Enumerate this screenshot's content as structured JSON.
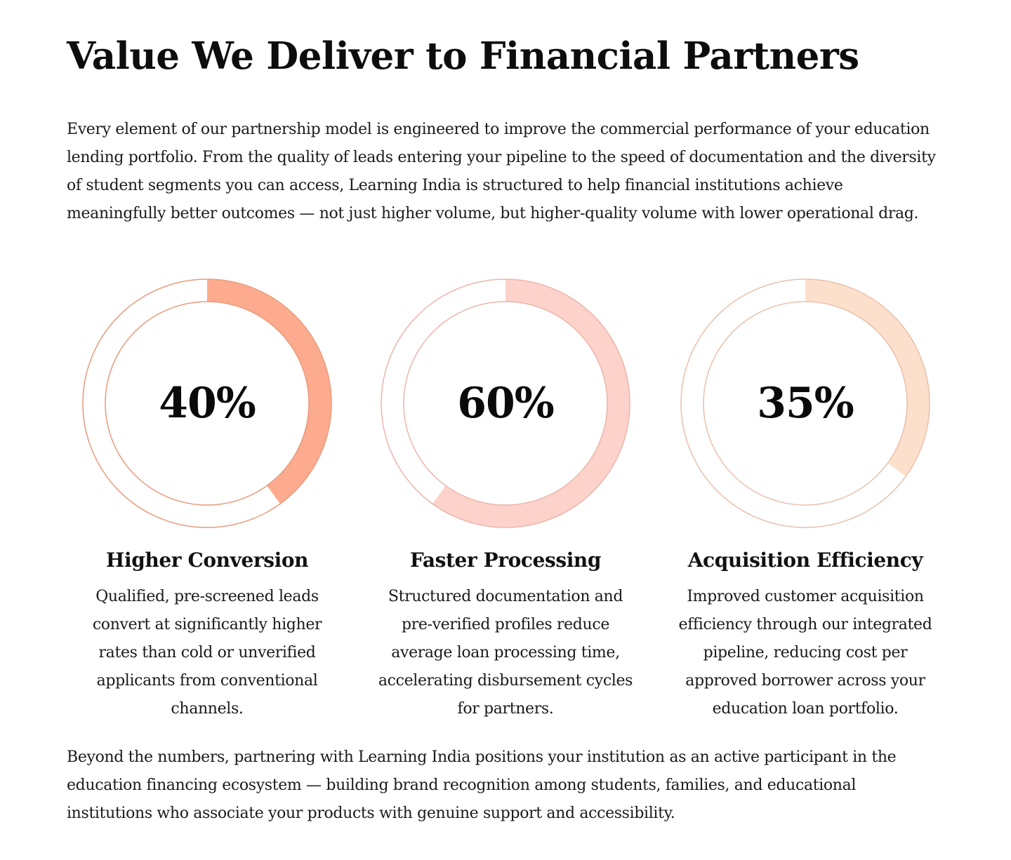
{
  "heading": "Value We Deliver to Financial Partners",
  "intro": "Every element of our partnership model is engineered to improve the commercial performance of your education lending portfolio. From the quality of leads entering your pipeline to the speed of documentation and the diversity of student segments you can access, Learning India is structured to help financial institutions achieve meaningfully better outcomes — not just higher volume, but higher-quality volume with lower operational drag.",
  "metrics": [
    {
      "value": "40%",
      "fraction": 0.4,
      "color": "#fcab8f",
      "border": "#e99a7e",
      "title": "Higher Conversion",
      "description": "Qualified, pre-screened leads convert at significantly higher rates than cold or unverified applicants from conventional channels."
    },
    {
      "value": "60%",
      "fraction": 0.6,
      "color": "#fdd2cb",
      "border": "#eab5ab",
      "title": "Faster Processing",
      "description": "Structured documentation and pre-verified profiles reduce average loan processing time, accelerating disbursement cycles for partners."
    },
    {
      "value": "35%",
      "fraction": 0.35,
      "color": "#fde0cc",
      "border": "#e8c0ad",
      "title": "Acquisition Efficiency",
      "description": "Improved customer acquisition efficiency through our integrated pipeline, reducing cost per approved borrower across your education loan portfolio."
    }
  ],
  "outro": "Beyond the numbers, partnering with Learning India positions your institution as an active participant in the education financing ecosystem — building brand recognition among students, families, and educational institutions who associate your products with genuine support and accessibility."
}
